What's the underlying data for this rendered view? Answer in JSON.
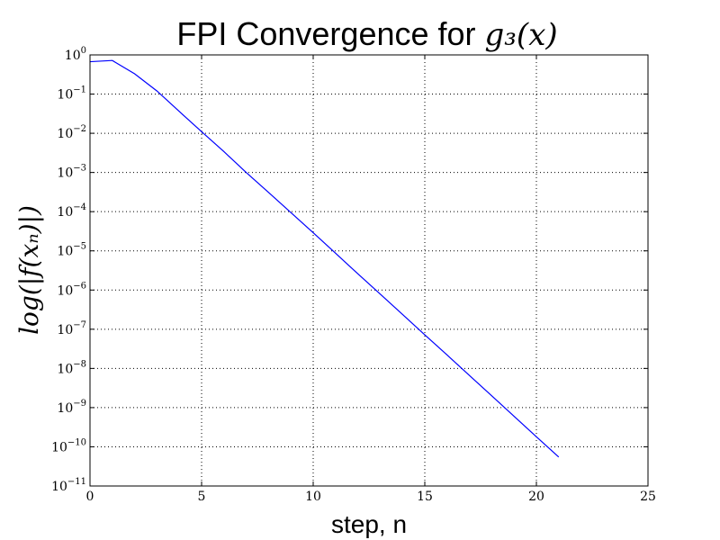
{
  "chart_data": {
    "type": "line",
    "title": "FPI Convergence for ",
    "title_math": "g₃(x)",
    "xlabel": "step, n",
    "ylabel": "log(|f(xₙ)|)",
    "xlim": [
      0,
      25
    ],
    "ylim": [
      1e-11,
      1
    ],
    "yscale": "log",
    "grid": true,
    "x_ticks": [
      {
        "value": 0,
        "label": "0"
      },
      {
        "value": 5,
        "label": "5"
      },
      {
        "value": 10,
        "label": "10"
      },
      {
        "value": 15,
        "label": "15"
      },
      {
        "value": 20,
        "label": "20"
      },
      {
        "value": 25,
        "label": "25"
      }
    ],
    "y_ticks": [
      {
        "value": 1,
        "exp": "0"
      },
      {
        "value": 0.1,
        "exp": "−1"
      },
      {
        "value": 0.01,
        "exp": "−2"
      },
      {
        "value": 0.001,
        "exp": "−3"
      },
      {
        "value": 0.0001,
        "exp": "−4"
      },
      {
        "value": 1e-05,
        "exp": "−5"
      },
      {
        "value": 1e-06,
        "exp": "−6"
      },
      {
        "value": 1e-07,
        "exp": "−7"
      },
      {
        "value": 1e-08,
        "exp": "−8"
      },
      {
        "value": 1e-09,
        "exp": "−9"
      },
      {
        "value": 1e-10,
        "exp": "−10"
      },
      {
        "value": 1e-11,
        "exp": "−11"
      }
    ],
    "series": [
      {
        "color": "#0000ff",
        "x": [
          0,
          1,
          2,
          3,
          4,
          5,
          6,
          7,
          8,
          9,
          10,
          11,
          12,
          13,
          14,
          15,
          16,
          17,
          18,
          19,
          20,
          21
        ],
        "y": [
          0.67,
          0.72,
          0.33,
          0.12,
          0.036,
          0.011,
          0.0034,
          0.001,
          0.00031,
          9.5e-05,
          2.9e-05,
          8.7e-06,
          2.6e-06,
          7.9e-07,
          2.4e-07,
          7.2e-08,
          2.2e-08,
          6.6e-09,
          2e-09,
          6e-10,
          1.8e-10,
          5.5e-11
        ]
      }
    ]
  }
}
